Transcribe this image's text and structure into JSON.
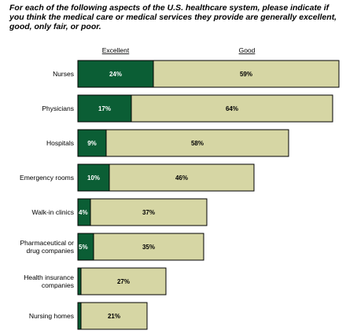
{
  "chart_data": {
    "type": "bar",
    "stacked": true,
    "orientation": "horizontal",
    "title": "For each of the following aspects of the U.S. healthcare system, please indicate if you think the medical care or medical services they provide are generally excellent, good, only fair, or poor.",
    "legend": [
      "Excellent",
      "Good"
    ],
    "categories": [
      "Nurses",
      "Physicians",
      "Hospitals",
      "Emergency rooms",
      "Walk-in clinics",
      "Pharmaceutical or drug companies",
      "Health insurance companies",
      "Nursing homes"
    ],
    "category_lines": [
      [
        "Nurses"
      ],
      [
        "Physicians"
      ],
      [
        "Hospitals"
      ],
      [
        "Emergency rooms"
      ],
      [
        "Walk-in clinics"
      ],
      [
        "Pharmaceutical or",
        "drug companies"
      ],
      [
        "Health insurance",
        "companies"
      ],
      [
        "Nursing homes"
      ]
    ],
    "series": [
      {
        "name": "Excellent",
        "values": [
          24,
          17,
          9,
          10,
          4,
          5,
          1,
          1
        ],
        "labels": [
          "24%",
          "17%",
          "9%",
          "10%",
          "4%",
          "5%",
          "",
          ""
        ]
      },
      {
        "name": "Good",
        "values": [
          59,
          64,
          58,
          46,
          37,
          35,
          27,
          21
        ],
        "labels": [
          "59%",
          "64%",
          "58%",
          "46%",
          "37%",
          "35%",
          "27%",
          "21%"
        ]
      }
    ],
    "colors": {
      "excellent": "#0b5e35",
      "good": "#d6d6a4",
      "border": "#000000"
    },
    "grid": false
  }
}
